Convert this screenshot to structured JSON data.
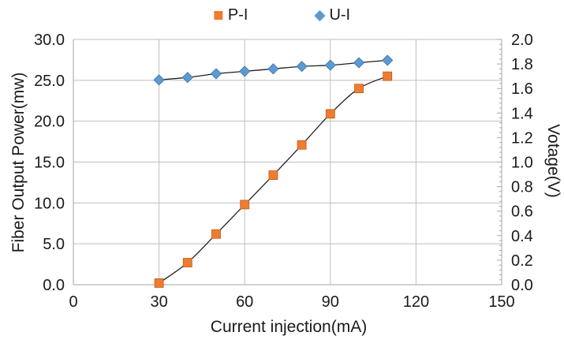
{
  "chart_data": {
    "type": "line",
    "title": "",
    "x": [
      30,
      40,
      50,
      60,
      70,
      80,
      90,
      100,
      110
    ],
    "series": [
      {
        "name": "P-I",
        "axis": "left",
        "marker": "square",
        "marker_color": "#ED7D31",
        "marker_border": "#C55A11",
        "values": [
          0.2,
          2.7,
          6.2,
          9.8,
          13.4,
          17.1,
          20.9,
          24.0,
          25.5
        ]
      },
      {
        "name": "U-I",
        "axis": "right",
        "marker": "diamond",
        "marker_color": "#5B9BD5",
        "marker_border": "#41719C",
        "values": [
          1.67,
          1.69,
          1.72,
          1.74,
          1.76,
          1.78,
          1.79,
          1.81,
          1.83
        ]
      }
    ],
    "line_color": "#1f1f1f",
    "x_axis": {
      "label": "Current injection(mA)",
      "min": 0,
      "max": 150,
      "step": 30,
      "tick_labels": [
        "0",
        "30",
        "60",
        "90",
        "120",
        "150"
      ]
    },
    "y_left": {
      "label": "Fiber Output Power(mw)",
      "min": 0,
      "max": 30,
      "step": 5,
      "tick_labels": [
        "0.0",
        "5.0",
        "10.0",
        "15.0",
        "20.0",
        "25.0",
        "30.0"
      ]
    },
    "y_right": {
      "label": "Votage(V)",
      "min": 0,
      "max": 2,
      "step": 0.2,
      "tick_labels": [
        "0.0",
        "0.2",
        "0.4",
        "0.6",
        "0.8",
        "1.0",
        "1.2",
        "1.4",
        "1.6",
        "1.8",
        "2.0"
      ],
      "minor_per_major": 5
    },
    "grid": true,
    "legend_position": "top-center",
    "colors": {
      "grid": "#BFBFBF",
      "axis": "#A6A6A6",
      "text": "#1a1a1a",
      "background": "#FFFFFF"
    }
  }
}
